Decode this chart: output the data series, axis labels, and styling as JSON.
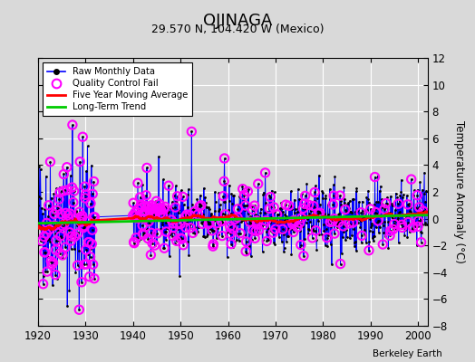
{
  "title": "OJINAGA",
  "subtitle": "29.570 N, 104.420 W (Mexico)",
  "ylabel": "Temperature Anomaly (°C)",
  "watermark": "Berkeley Earth",
  "xlim": [
    1920,
    2002
  ],
  "ylim": [
    -8,
    12
  ],
  "yticks": [
    -8,
    -6,
    -4,
    -2,
    0,
    2,
    4,
    6,
    8,
    10,
    12
  ],
  "xticks": [
    1920,
    1930,
    1940,
    1950,
    1960,
    1970,
    1980,
    1990,
    2000
  ],
  "bg_color": "#d9d9d9",
  "plot_bg": "#d9d9d9",
  "raw_color": "#0000ff",
  "qc_color": "#ff00ff",
  "moving_avg_color": "#ff0000",
  "trend_color": "#00cc00",
  "seed": 42
}
